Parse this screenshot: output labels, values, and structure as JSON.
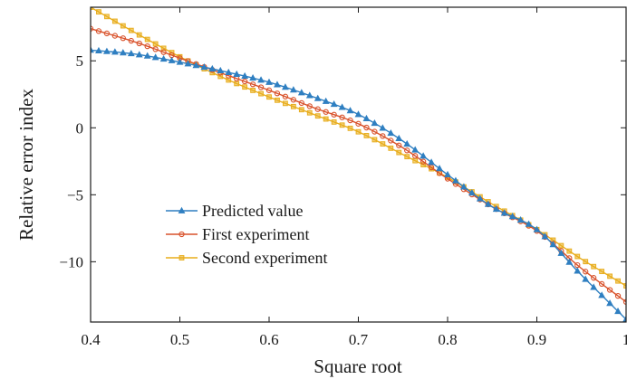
{
  "chart_data": {
    "type": "line",
    "xlabel": "Square root",
    "ylabel": "Relative error index",
    "xlim": [
      0.4,
      1.0
    ],
    "ylim": [
      -14.5,
      9
    ],
    "xticks": [
      0.4,
      0.5,
      0.6,
      0.7,
      0.8,
      0.9,
      1.0
    ],
    "xtick_labels": [
      "0.4",
      "0.5",
      "0.6",
      "0.7",
      "0.8",
      "0.9",
      "1"
    ],
    "yticks": [
      5,
      0,
      -5,
      -10
    ],
    "ytick_labels": [
      "5",
      "0",
      "−5",
      "−10"
    ],
    "grid": false,
    "legend_position": "lower-left",
    "series": [
      {
        "name": "Predicted value",
        "color": "#2f7fc1",
        "marker": "triangle",
        "x": [
          0.4,
          0.45,
          0.5,
          0.55,
          0.6,
          0.65,
          0.7,
          0.75,
          0.8,
          0.85,
          0.9,
          0.95,
          1.0
        ],
        "y": [
          5.8,
          5.5,
          4.9,
          4.2,
          3.4,
          2.3,
          1.0,
          -1.0,
          -3.5,
          -5.9,
          -7.6,
          -11.0,
          -14.3
        ]
      },
      {
        "name": "First experiment",
        "color": "#d9522b",
        "marker": "circle",
        "x": [
          0.4,
          0.45,
          0.5,
          0.55,
          0.6,
          0.65,
          0.7,
          0.75,
          0.8,
          0.85,
          0.9,
          0.95,
          1.0
        ],
        "y": [
          7.4,
          6.4,
          5.2,
          4.0,
          2.8,
          1.5,
          0.3,
          -1.5,
          -3.8,
          -5.9,
          -7.7,
          -10.5,
          -13.0
        ]
      },
      {
        "name": "Second experiment",
        "color": "#e8ad1c",
        "marker": "square",
        "x": [
          0.4,
          0.45,
          0.5,
          0.55,
          0.6,
          0.65,
          0.7,
          0.75,
          0.8,
          0.85,
          0.9,
          0.95,
          1.0
        ],
        "y": [
          9.0,
          7.1,
          5.3,
          3.7,
          2.3,
          1.0,
          -0.3,
          -2.0,
          -3.7,
          -5.7,
          -7.6,
          -9.8,
          -11.8
        ]
      }
    ]
  }
}
